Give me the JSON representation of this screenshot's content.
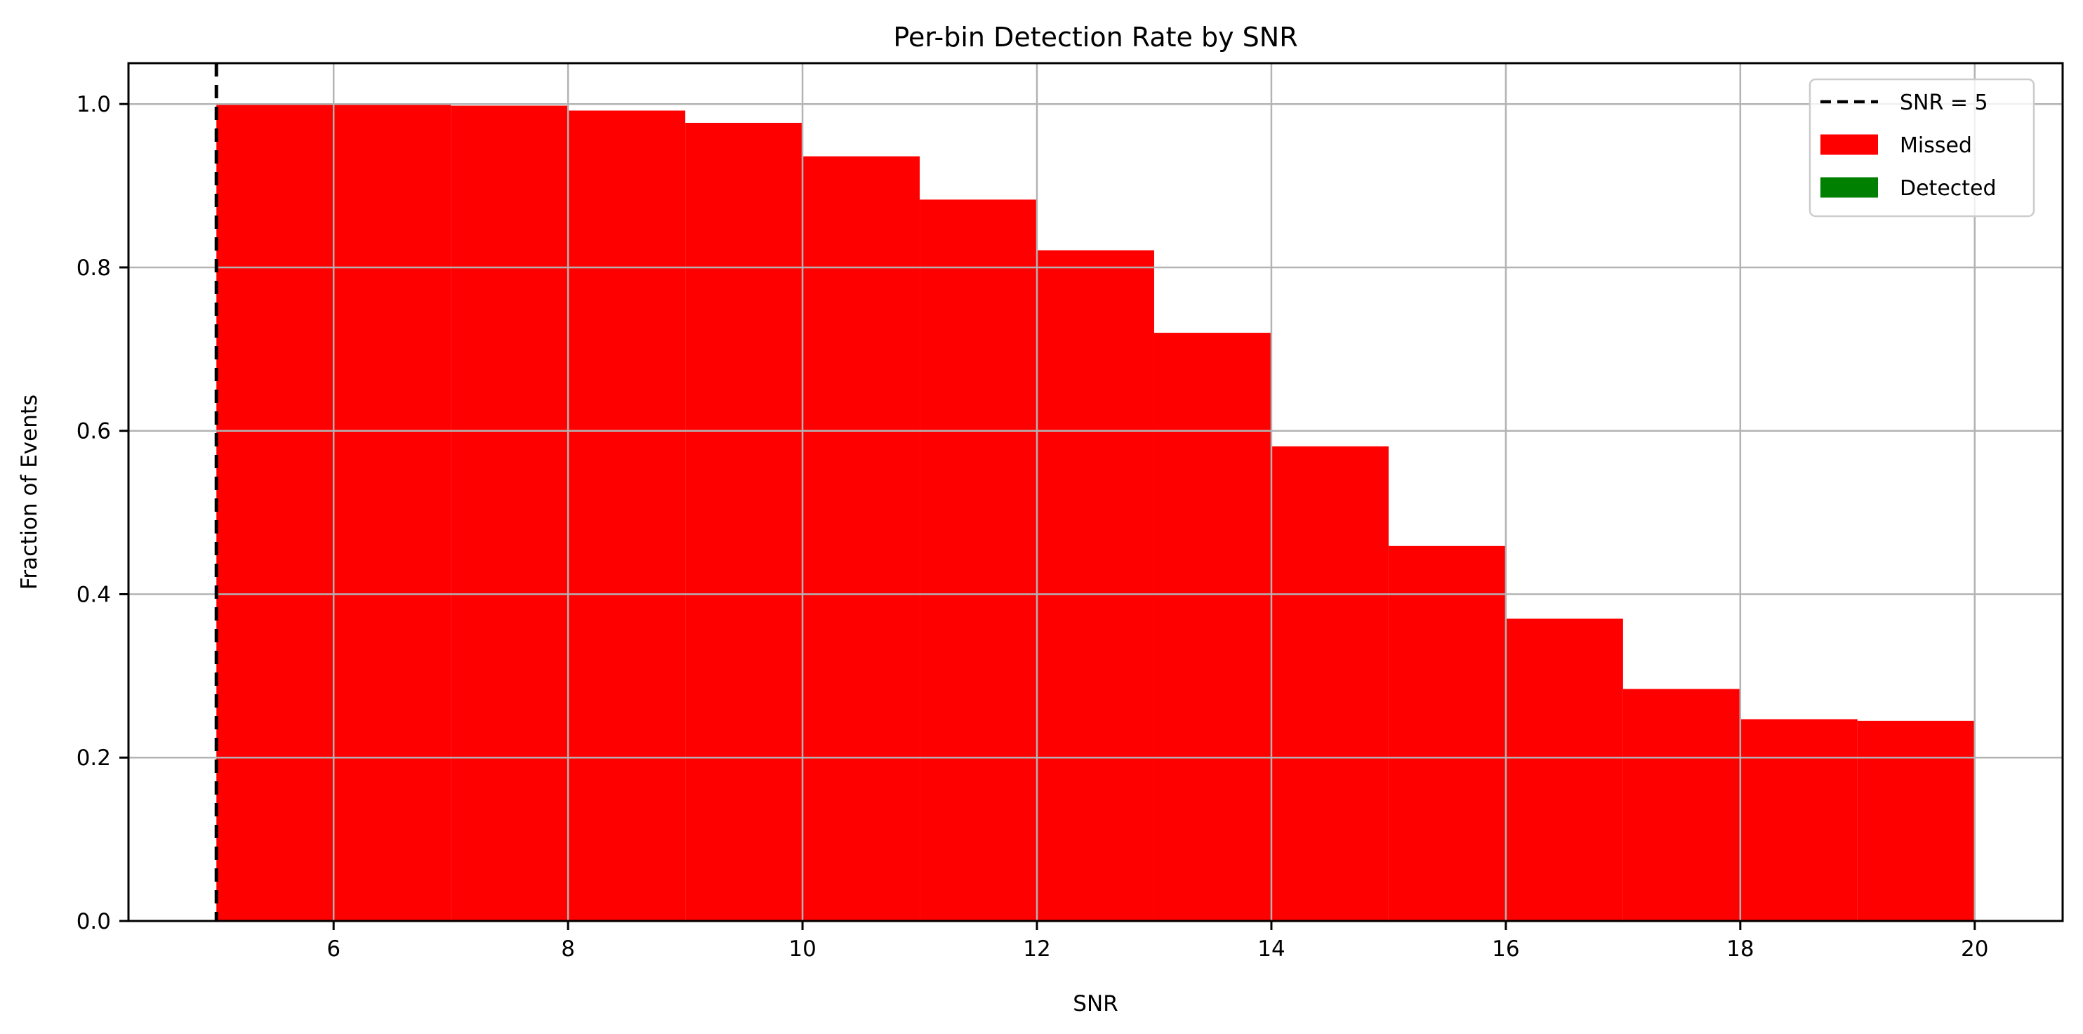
{
  "figure": {
    "background": "#ffffff"
  },
  "chart_data": {
    "type": "bar",
    "subtype": "stacked-histogram",
    "title": "Per-bin Detection Rate by SNR",
    "xlabel": "SNR",
    "ylabel": "Fraction of Events",
    "bin_edges": [
      5,
      6,
      7,
      8,
      9,
      10,
      11,
      12,
      13,
      14,
      15,
      16,
      17,
      18,
      19,
      20
    ],
    "series": [
      {
        "name": "Missed",
        "color": "#ff0000",
        "values": [
          1.0,
          1.0,
          0.998,
          0.992,
          0.977,
          0.936,
          0.883,
          0.821,
          0.72,
          0.581,
          0.459,
          0.37,
          0.284,
          0.247,
          0.245
        ]
      },
      {
        "name": "Detected",
        "color": "#008000",
        "values": [
          0,
          0,
          0,
          0,
          0,
          0,
          0,
          0,
          0,
          0,
          0,
          0,
          0,
          0,
          0
        ]
      }
    ],
    "vline": {
      "x": 5,
      "label": "SNR = 5",
      "color": "#000000",
      "style": "dashed"
    },
    "xlim": [
      4.25,
      20.75
    ],
    "ylim": [
      0,
      1.05
    ],
    "xticks": [
      6,
      8,
      10,
      12,
      14,
      16,
      18,
      20
    ],
    "xtick_labels": [
      "6",
      "8",
      "10",
      "12",
      "14",
      "16",
      "18",
      "20"
    ],
    "yticks": [
      0.0,
      0.2,
      0.4,
      0.6,
      0.8,
      1.0
    ],
    "ytick_labels": [
      "0.0",
      "0.2",
      "0.4",
      "0.6",
      "0.8",
      "1.0"
    ],
    "grid": true,
    "grid_color": "#b3b3b3",
    "axis_color": "#000000",
    "legend": {
      "position": "upper right",
      "border_color": "#cccccc",
      "background": "rgba(255,255,255,0.8)",
      "entries": [
        {
          "label": "SNR = 5",
          "type": "dashed-line",
          "color": "#000000"
        },
        {
          "label": "Missed",
          "type": "patch",
          "color": "#ff0000"
        },
        {
          "label": "Detected",
          "type": "patch",
          "color": "#008000"
        }
      ]
    }
  }
}
